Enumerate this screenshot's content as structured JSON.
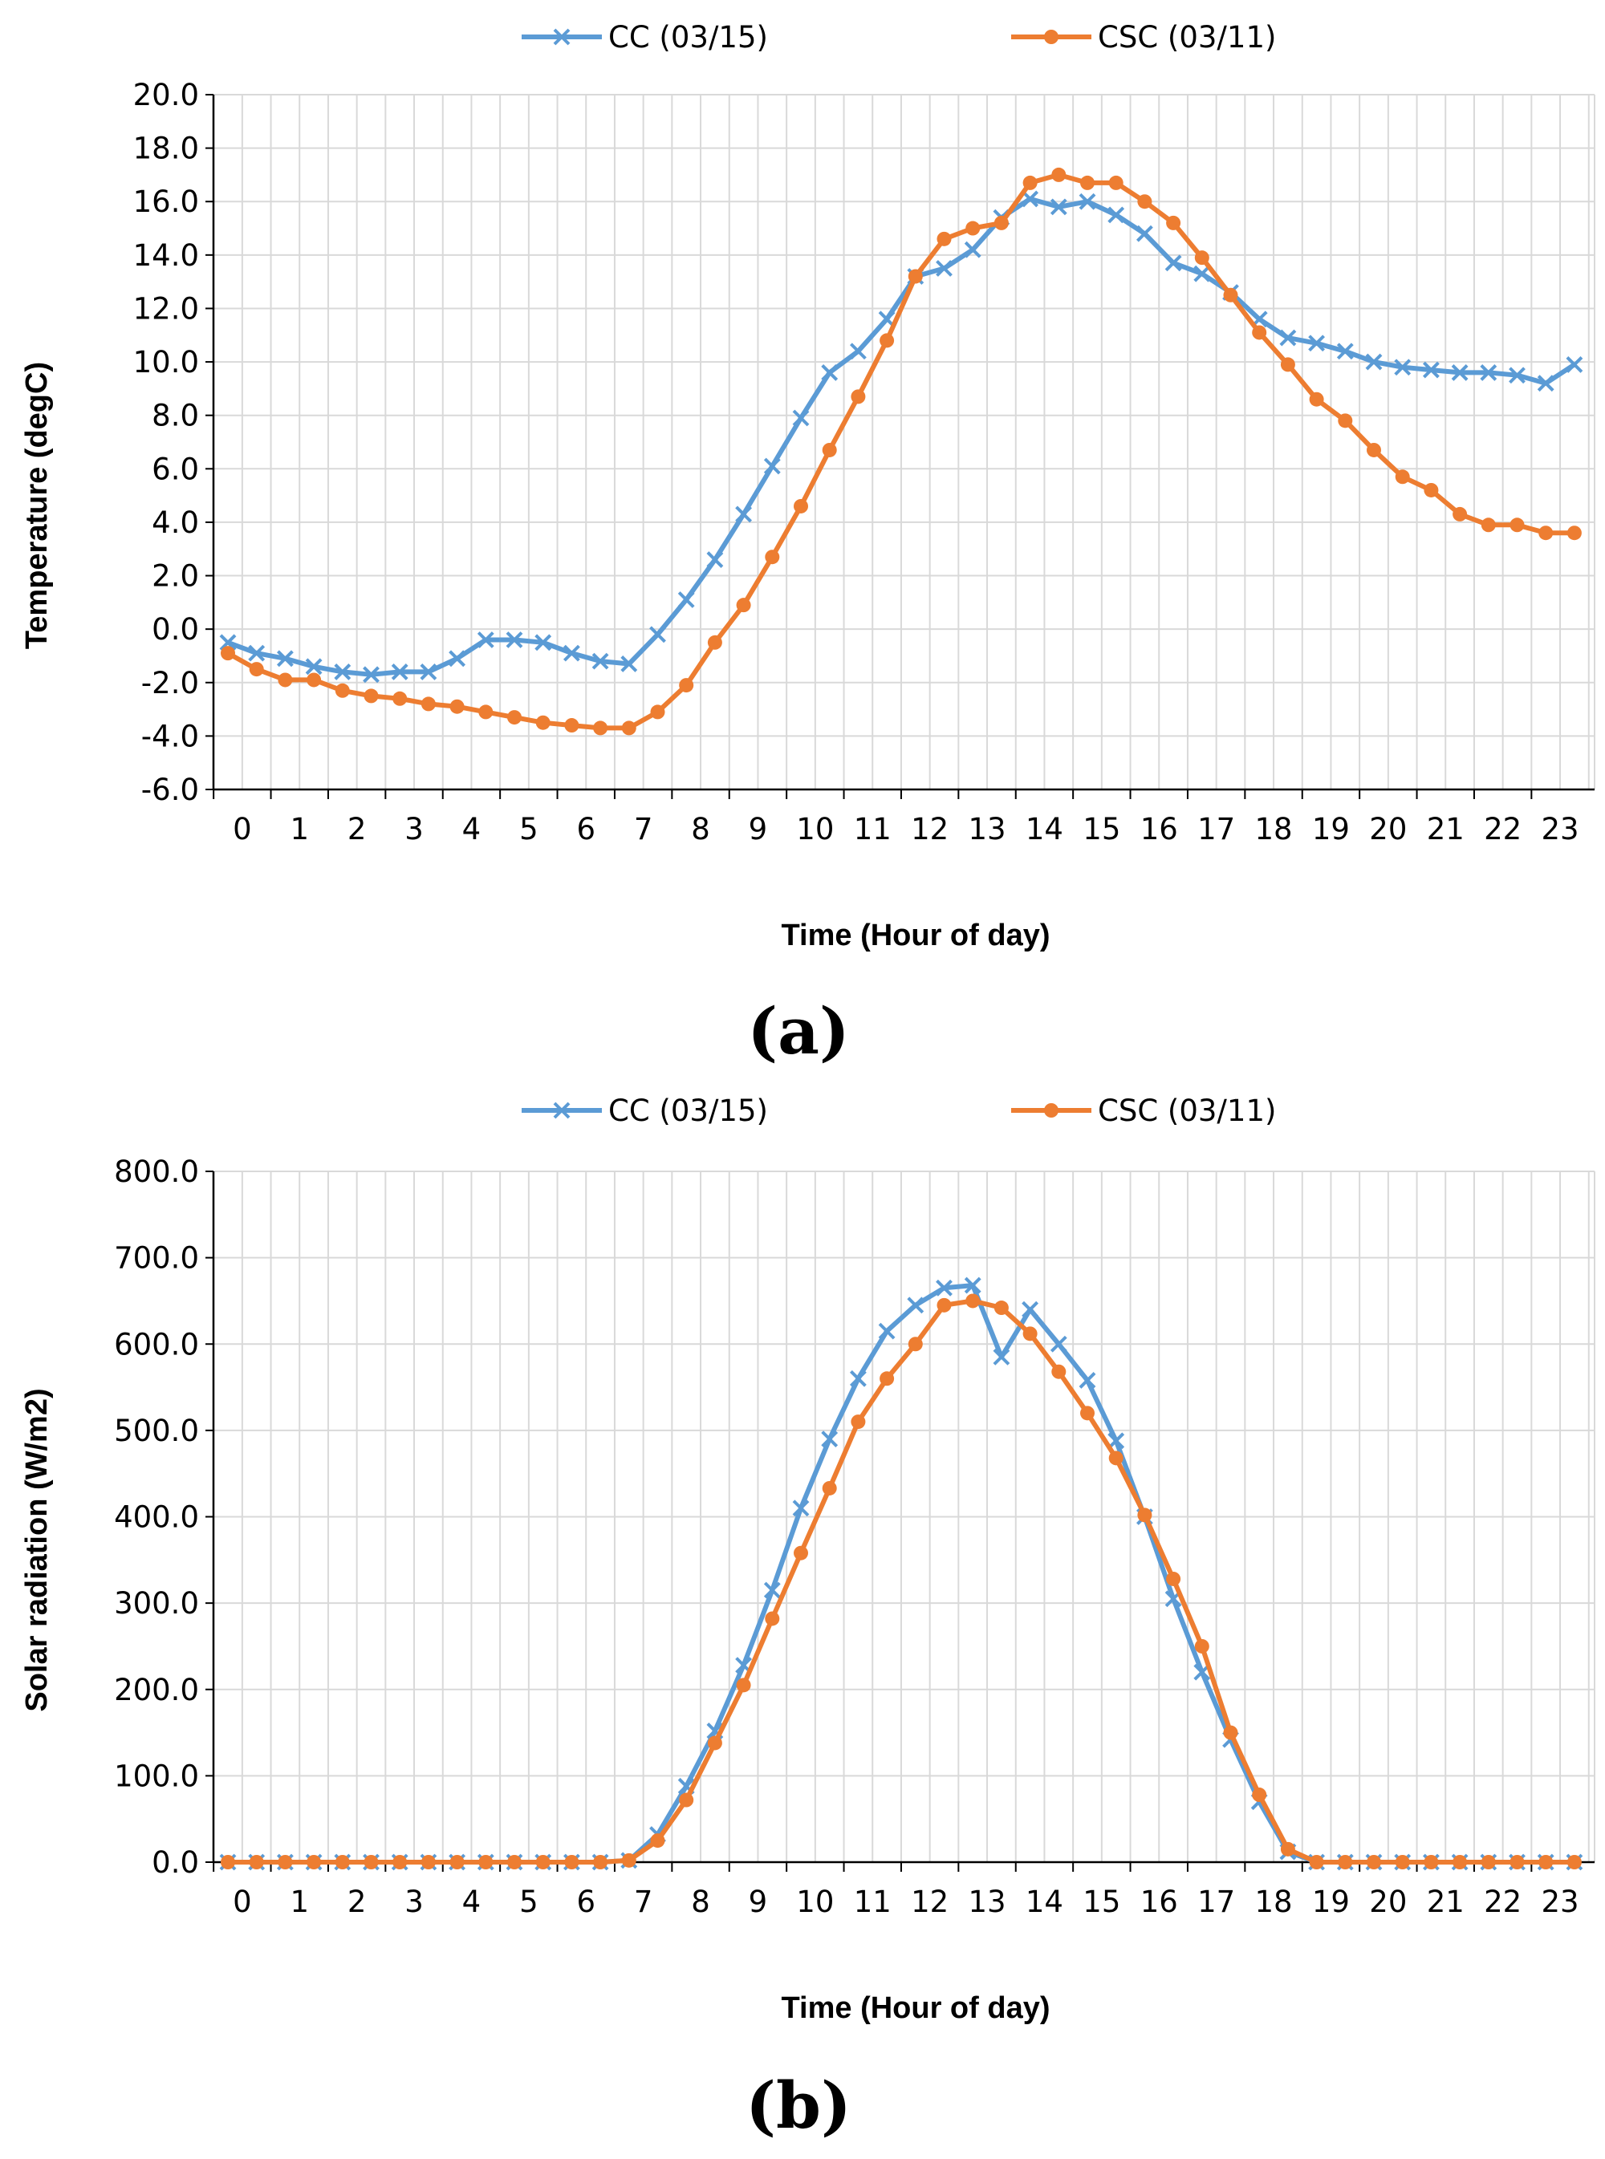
{
  "colors": {
    "cc": "#5b9bd5",
    "csc": "#ed7d31",
    "grid": "#d9d9d9",
    "axis": "#000000"
  },
  "chart_data": [
    {
      "type": "line",
      "panel_label": "(a)",
      "title": "",
      "xlabel": "Time (Hour of day)",
      "ylabel": "Temperature (degC)",
      "ylim": [
        -6,
        20
      ],
      "y_ticks": [
        "-6.0",
        "-4.0",
        "-2.0",
        "0.0",
        "2.0",
        "4.0",
        "6.0",
        "8.0",
        "10.0",
        "12.0",
        "14.0",
        "16.0",
        "18.0",
        "20.0"
      ],
      "x_ticks": [
        "0",
        "1",
        "2",
        "3",
        "4",
        "5",
        "6",
        "7",
        "8",
        "9",
        "10",
        "11",
        "12",
        "13",
        "14",
        "15",
        "16",
        "17",
        "18",
        "19",
        "20",
        "21",
        "22",
        "23"
      ],
      "grid": true,
      "legend_position": "top",
      "series": [
        {
          "name": "CC (03/15)",
          "marker": "x",
          "color": "#5b9bd5",
          "values": [
            -0.5,
            -0.9,
            -1.1,
            -1.4,
            -1.6,
            -1.7,
            -1.6,
            -1.6,
            -1.1,
            -0.4,
            -0.4,
            -0.5,
            -0.9,
            -1.2,
            -1.3,
            -0.2,
            1.1,
            2.6,
            4.3,
            6.1,
            7.9,
            9.6,
            10.4,
            11.6,
            13.2,
            13.5,
            14.2,
            15.4,
            16.1,
            15.8,
            16.0,
            15.5,
            14.8,
            13.7,
            13.3,
            12.6,
            11.6,
            10.9,
            10.7,
            10.4,
            10.0,
            9.8,
            9.7,
            9.6,
            9.6,
            9.5,
            9.2,
            9.9
          ]
        },
        {
          "name": "CSC (03/11)",
          "marker": "o",
          "color": "#ed7d31",
          "values": [
            -0.9,
            -1.5,
            -1.9,
            -1.9,
            -2.3,
            -2.5,
            -2.6,
            -2.8,
            -2.9,
            -3.1,
            -3.3,
            -3.5,
            -3.6,
            -3.7,
            -3.7,
            -3.1,
            -2.1,
            -0.5,
            0.9,
            2.7,
            4.6,
            6.7,
            8.7,
            10.8,
            13.2,
            14.6,
            15.0,
            15.2,
            16.7,
            17.0,
            16.7,
            16.7,
            16.0,
            15.2,
            13.9,
            12.5,
            11.1,
            9.9,
            8.6,
            7.8,
            6.7,
            5.7,
            5.2,
            4.3,
            3.9,
            3.9,
            3.6,
            3.6
          ]
        }
      ]
    },
    {
      "type": "line",
      "panel_label": "(b)",
      "title": "",
      "xlabel": "Time (Hour of day)",
      "ylabel": "Solar radiation (W/m2)",
      "ylim": [
        0,
        800
      ],
      "y_ticks": [
        "0.0",
        "100.0",
        "200.0",
        "300.0",
        "400.0",
        "500.0",
        "600.0",
        "700.0",
        "800.0"
      ],
      "x_ticks": [
        "0",
        "1",
        "2",
        "3",
        "4",
        "5",
        "6",
        "7",
        "8",
        "9",
        "10",
        "11",
        "12",
        "13",
        "14",
        "15",
        "16",
        "17",
        "18",
        "19",
        "20",
        "21",
        "22",
        "23"
      ],
      "grid": true,
      "legend_position": "top",
      "series": [
        {
          "name": "CC (03/15)",
          "marker": "x",
          "color": "#5b9bd5",
          "values": [
            0,
            0,
            0,
            0,
            0,
            0,
            0,
            0,
            0,
            0,
            0,
            0,
            0,
            0,
            2,
            32,
            88,
            152,
            228,
            315,
            410,
            490,
            560,
            615,
            645,
            665,
            668,
            585,
            640,
            600,
            558,
            488,
            400,
            305,
            220,
            142,
            70,
            12,
            0,
            0,
            0,
            0,
            0,
            0,
            0,
            0,
            0,
            0
          ]
        },
        {
          "name": "CSC (03/11)",
          "marker": "o",
          "color": "#ed7d31",
          "values": [
            0,
            0,
            0,
            0,
            0,
            0,
            0,
            0,
            0,
            0,
            0,
            0,
            0,
            0,
            2,
            25,
            72,
            138,
            205,
            282,
            358,
            433,
            510,
            560,
            600,
            645,
            650,
            642,
            612,
            568,
            520,
            468,
            402,
            328,
            250,
            150,
            78,
            15,
            0,
            0,
            0,
            0,
            0,
            0,
            0,
            0,
            0,
            0
          ]
        }
      ]
    }
  ]
}
